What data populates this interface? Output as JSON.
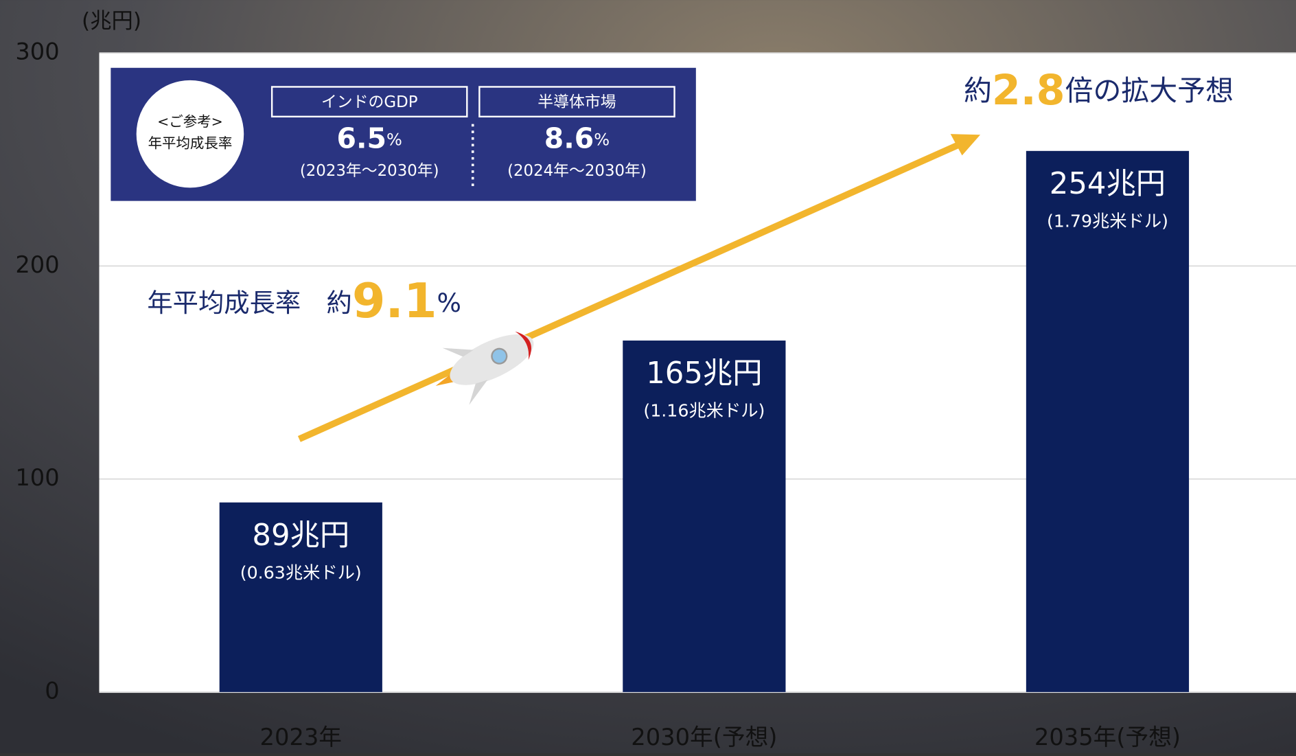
{
  "chart_data": {
    "type": "bar",
    "y_unit_label": "(兆円)",
    "categories": [
      "2023年",
      "2030年(予想)",
      "2035年(予想)"
    ],
    "values": [
      89,
      165,
      254
    ],
    "value_labels": [
      "89兆円",
      "165兆円",
      "254兆円"
    ],
    "usd_labels": [
      "(0.63兆米ドル)",
      "(1.16兆米ドル)",
      "(1.79兆米ドル)"
    ],
    "color": "#0c1f5b",
    "ylim": [
      0,
      300
    ],
    "yticks": [
      0,
      100,
      200,
      300
    ],
    "grid": true,
    "annotations": {
      "cagr": {
        "prefix": "年平均成長率　約",
        "number": "9.1",
        "suffix": "%"
      },
      "growth": {
        "prefix": "約",
        "number": "2.8",
        "suffix": "倍の拡大予想"
      },
      "reference": {
        "badge": [
          "<ご参考>",
          "年平均成長率"
        ],
        "panels": [
          {
            "title": "インドのGDP",
            "value": "6.5",
            "unit": "%",
            "period": "(2023年～2030年)"
          },
          {
            "title": "半導体市場",
            "value": "8.6",
            "unit": "%",
            "period": "(2024年～2030年)"
          }
        ]
      }
    }
  }
}
